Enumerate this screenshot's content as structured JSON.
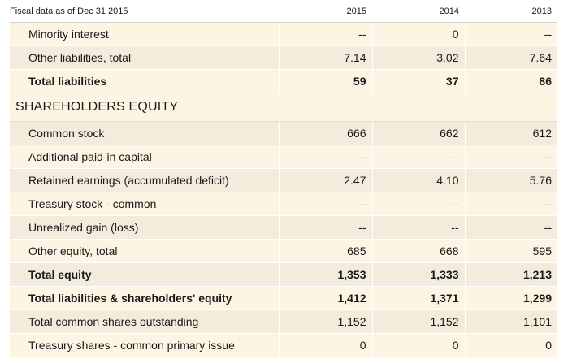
{
  "header": {
    "label": "Fiscal data as of Dec 31 2015",
    "years": [
      "2015",
      "2014",
      "2013"
    ]
  },
  "rows_top": [
    {
      "label": "Minority interest",
      "values": [
        "--",
        "0",
        "--"
      ],
      "bold": false
    },
    {
      "label": "Other liabilities, total",
      "values": [
        "7.14",
        "3.02",
        "7.64"
      ],
      "bold": false
    },
    {
      "label": "Total liabilities",
      "values": [
        "59",
        "37",
        "86"
      ],
      "bold": true
    }
  ],
  "section": {
    "title": "SHAREHOLDERS EQUITY"
  },
  "rows_bottom": [
    {
      "label": "Common stock",
      "values": [
        "666",
        "662",
        "612"
      ],
      "bold": false
    },
    {
      "label": "Additional paid-in capital",
      "values": [
        "--",
        "--",
        "--"
      ],
      "bold": false
    },
    {
      "label": "Retained earnings (accumulated deficit)",
      "values": [
        "2.47",
        "4.10",
        "5.76"
      ],
      "bold": false
    },
    {
      "label": "Treasury stock - common",
      "values": [
        "--",
        "--",
        "--"
      ],
      "bold": false
    },
    {
      "label": "Unrealized gain (loss)",
      "values": [
        "--",
        "--",
        "--"
      ],
      "bold": false
    },
    {
      "label": "Other equity, total",
      "values": [
        "685",
        "668",
        "595"
      ],
      "bold": false
    },
    {
      "label": "Total equity",
      "values": [
        "1,353",
        "1,333",
        "1,213"
      ],
      "bold": true
    },
    {
      "label": "Total liabilities & shareholders' equity",
      "values": [
        "1,412",
        "1,371",
        "1,299"
      ],
      "bold": true
    },
    {
      "label": "Total common shares outstanding",
      "values": [
        "1,152",
        "1,152",
        "1,101"
      ],
      "bold": false
    },
    {
      "label": "Treasury shares - common primary issue",
      "values": [
        "0",
        "0",
        "0"
      ],
      "bold": false
    }
  ],
  "colors": {
    "row_light": "#fdf5e4",
    "row_dark": "#f3ecdc",
    "divider": "#d9d2c0"
  }
}
